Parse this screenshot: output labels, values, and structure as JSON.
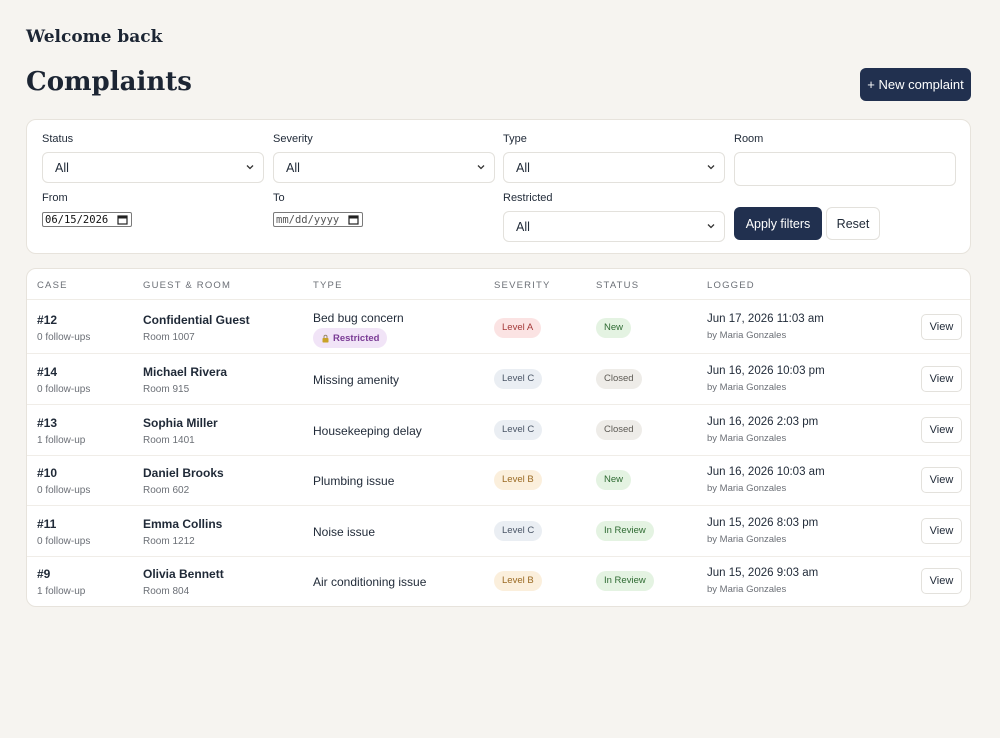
{
  "header": {
    "greeting": "Welcome back",
    "title": "Complaints",
    "new_button": "+ New complaint"
  },
  "filters": {
    "status": {
      "label": "Status",
      "value": "All"
    },
    "severity": {
      "label": "Severity",
      "value": "All"
    },
    "type": {
      "label": "Type",
      "value": "All"
    },
    "room": {
      "label": "Room",
      "value": ""
    },
    "from": {
      "label": "From",
      "value": "06/15/2026"
    },
    "to": {
      "label": "To",
      "placeholder": "mm/dd/yyyy"
    },
    "restricted": {
      "label": "Restricted",
      "value": "All"
    },
    "apply_label": "Apply filters",
    "reset_label": "Reset"
  },
  "table": {
    "columns": [
      "Case",
      "Guest & Room",
      "Type",
      "Severity",
      "Status",
      "Logged"
    ],
    "view_label": "View",
    "restricted_label": "Restricted",
    "rows": [
      {
        "case": "#12",
        "followups": "0 follow-ups",
        "guest": "Confidential Guest",
        "room": "Room 1007",
        "type": "Bed bug concern",
        "restricted": true,
        "severity": "Level A",
        "status": "New",
        "logged": "Jun 17, 2026 11:03 am",
        "by": "by Maria Gonzales"
      },
      {
        "case": "#14",
        "followups": "0 follow-ups",
        "guest": "Michael Rivera",
        "room": "Room 915",
        "type": "Missing amenity",
        "restricted": false,
        "severity": "Level C",
        "status": "Closed",
        "logged": "Jun 16, 2026 10:03 pm",
        "by": "by Maria Gonzales"
      },
      {
        "case": "#13",
        "followups": "1 follow-up",
        "guest": "Sophia Miller",
        "room": "Room 1401",
        "type": "Housekeeping delay",
        "restricted": false,
        "severity": "Level C",
        "status": "Closed",
        "logged": "Jun 16, 2026 2:03 pm",
        "by": "by Maria Gonzales"
      },
      {
        "case": "#10",
        "followups": "0 follow-ups",
        "guest": "Daniel Brooks",
        "room": "Room 602",
        "type": "Plumbing issue",
        "restricted": false,
        "severity": "Level B",
        "status": "New",
        "logged": "Jun 16, 2026 10:03 am",
        "by": "by Maria Gonzales"
      },
      {
        "case": "#11",
        "followups": "0 follow-ups",
        "guest": "Emma Collins",
        "room": "Room 1212",
        "type": "Noise issue",
        "restricted": false,
        "severity": "Level C",
        "status": "In Review",
        "logged": "Jun 15, 2026 8:03 pm",
        "by": "by Maria Gonzales"
      },
      {
        "case": "#9",
        "followups": "1 follow-up",
        "guest": "Olivia Bennett",
        "room": "Room 804",
        "type": "Air conditioning issue",
        "restricted": false,
        "severity": "Level B",
        "status": "In Review",
        "logged": "Jun 15, 2026 9:03 am",
        "by": "by Maria Gonzales"
      }
    ]
  },
  "colors": {
    "primary": "#21304f",
    "background": "#f6f4f0",
    "severity": {
      "Level A": {
        "bg": "#fbe3e3",
        "fg": "#a53a3a"
      },
      "Level B": {
        "bg": "#fbefdc",
        "fg": "#9a6a23"
      },
      "Level C": {
        "bg": "#eaeef3",
        "fg": "#4a5566"
      }
    },
    "status": {
      "New": {
        "bg": "#e4f3e2",
        "fg": "#2f6b33"
      },
      "Closed": {
        "bg": "#eeece8",
        "fg": "#5d5a54"
      },
      "In Review": {
        "bg": "#e4f3e2",
        "fg": "#2f6b33"
      }
    }
  }
}
